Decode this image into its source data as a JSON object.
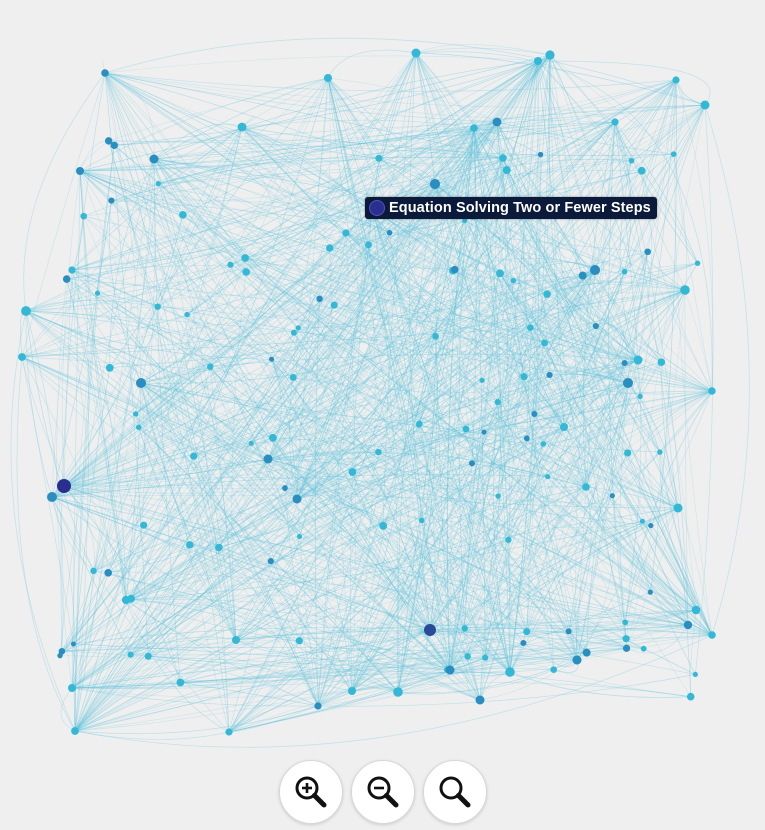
{
  "graph": {
    "tooltip": {
      "label": "Equation Solving Two or Fewer Steps"
    },
    "colors": {
      "edge": "#62c4dc",
      "node_light": "#33b8d6",
      "node_mid": "#2a8fc0",
      "node_dark": "#2a4a9a",
      "node_highlight": "#2a2f8f"
    }
  },
  "controls": {
    "zoom_in": {
      "icon": "zoom-in-icon"
    },
    "zoom_out": {
      "icon": "zoom-out-icon"
    },
    "reset": {
      "icon": "search-icon"
    }
  }
}
